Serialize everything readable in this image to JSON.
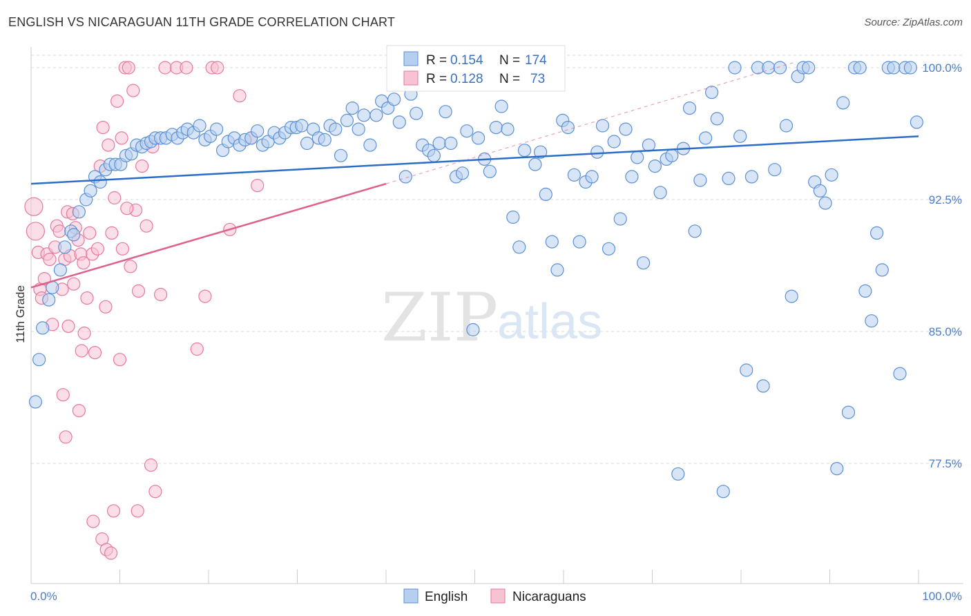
{
  "header": {
    "title": "ENGLISH VS NICARAGUAN 11TH GRADE CORRELATION CHART",
    "source": "Source: ZipAtlas.com"
  },
  "watermark": {
    "zip": "ZIP",
    "atlas": "atlas"
  },
  "colors": {
    "english": "#5b8fd6",
    "english_fill": "#b7cfee",
    "english_line": "#2a6cc7",
    "nicaraguan": "#e7789c",
    "nicaraguan_fill": "#f7c3d3",
    "nicaraguan_line": "#e0608c",
    "grid": "#d8d8d8",
    "axis_text": "#4a7cc9"
  },
  "legend": {
    "r_label": "R =",
    "n_label": "N =",
    "rows": [
      {
        "series": "English",
        "r": "0.154",
        "n": "174"
      },
      {
        "series": "Nicaraguans",
        "r": "0.128",
        "n": "73"
      }
    ]
  },
  "chart_data": {
    "type": "scatter",
    "title": "ENGLISH VS NICARAGUAN 11TH GRADE CORRELATION CHART",
    "xlabel": "",
    "ylabel": "11th Grade",
    "xlim": [
      0,
      100
    ],
    "ylim": [
      71.0,
      100.8
    ],
    "x_tick_labels": [
      "0.0%",
      "100.0%"
    ],
    "y_ticks": [
      77.5,
      85.0,
      92.5,
      100.0
    ],
    "y_tick_labels": [
      "77.5%",
      "85.0%",
      "92.5%",
      "100.0%"
    ],
    "grid": "horizontal dashed",
    "legend_position": "top-center",
    "series": [
      {
        "name": "English",
        "r": 0.154,
        "n": 174,
        "trend": {
          "x": [
            0,
            100
          ],
          "y": [
            93.4,
            96.1
          ]
        },
        "points": [
          [
            0.5,
            81.0
          ],
          [
            0.9,
            83.4
          ],
          [
            1.3,
            85.2
          ],
          [
            2.0,
            86.8
          ],
          [
            2.4,
            87.5
          ],
          [
            3.3,
            88.5
          ],
          [
            3.8,
            89.8
          ],
          [
            4.5,
            90.7
          ],
          [
            4.8,
            90.5
          ],
          [
            5.4,
            91.8
          ],
          [
            6.2,
            92.5
          ],
          [
            6.7,
            93.0
          ],
          [
            7.2,
            93.8
          ],
          [
            7.8,
            93.5
          ],
          [
            8.4,
            94.2
          ],
          [
            8.9,
            94.5
          ],
          [
            9.5,
            94.5
          ],
          [
            10.1,
            94.5
          ],
          [
            10.7,
            95.0
          ],
          [
            11.3,
            95.1
          ],
          [
            11.9,
            95.6
          ],
          [
            12.5,
            95.5
          ],
          [
            13.0,
            95.7
          ],
          [
            13.5,
            95.8
          ],
          [
            14.0,
            96.0
          ],
          [
            14.6,
            96.0
          ],
          [
            15.2,
            96.0
          ],
          [
            15.9,
            96.2
          ],
          [
            16.5,
            96.0
          ],
          [
            17.1,
            96.3
          ],
          [
            17.6,
            96.5
          ],
          [
            18.3,
            96.3
          ],
          [
            19.0,
            96.7
          ],
          [
            19.6,
            95.9
          ],
          [
            20.2,
            96.1
          ],
          [
            20.9,
            96.5
          ],
          [
            21.6,
            95.3
          ],
          [
            22.2,
            95.8
          ],
          [
            22.9,
            96.0
          ],
          [
            23.5,
            95.6
          ],
          [
            24.1,
            95.9
          ],
          [
            24.8,
            96.0
          ],
          [
            25.5,
            96.4
          ],
          [
            26.1,
            95.6
          ],
          [
            26.7,
            95.8
          ],
          [
            27.4,
            96.3
          ],
          [
            28.0,
            96.0
          ],
          [
            28.6,
            96.3
          ],
          [
            29.3,
            96.6
          ],
          [
            29.9,
            96.6
          ],
          [
            30.5,
            96.7
          ],
          [
            31.1,
            95.7
          ],
          [
            31.8,
            96.5
          ],
          [
            32.4,
            96.0
          ],
          [
            33.1,
            95.9
          ],
          [
            33.7,
            96.7
          ],
          [
            34.3,
            96.5
          ],
          [
            34.9,
            95.0
          ],
          [
            35.6,
            97.0
          ],
          [
            36.2,
            97.7
          ],
          [
            36.9,
            96.5
          ],
          [
            37.5,
            97.3
          ],
          [
            38.2,
            95.6
          ],
          [
            38.9,
            97.3
          ],
          [
            39.5,
            98.1
          ],
          [
            40.2,
            97.7
          ],
          [
            40.9,
            98.2
          ],
          [
            41.5,
            96.9
          ],
          [
            42.2,
            93.8
          ],
          [
            42.8,
            98.5
          ],
          [
            43.4,
            97.4
          ],
          [
            44.1,
            95.6
          ],
          [
            44.8,
            95.3
          ],
          [
            45.4,
            95.0
          ],
          [
            46.0,
            95.7
          ],
          [
            46.7,
            97.5
          ],
          [
            47.3,
            95.7
          ],
          [
            47.9,
            93.8
          ],
          [
            48.6,
            94.0
          ],
          [
            49.1,
            96.4
          ],
          [
            49.8,
            85.1
          ],
          [
            50.4,
            96.0
          ],
          [
            51.1,
            94.8
          ],
          [
            51.7,
            94.1
          ],
          [
            52.4,
            96.6
          ],
          [
            53.0,
            97.8
          ],
          [
            53.7,
            96.5
          ],
          [
            54.3,
            91.5
          ],
          [
            55.0,
            89.8
          ],
          [
            55.6,
            95.3
          ],
          [
            56.1,
            100.0
          ],
          [
            56.8,
            94.5
          ],
          [
            57.4,
            95.2
          ],
          [
            58.0,
            92.8
          ],
          [
            58.7,
            90.1
          ],
          [
            59.3,
            88.5
          ],
          [
            59.9,
            97.0
          ],
          [
            60.5,
            96.6
          ],
          [
            61.2,
            93.9
          ],
          [
            61.8,
            90.1
          ],
          [
            62.5,
            93.5
          ],
          [
            63.2,
            93.8
          ],
          [
            63.8,
            95.2
          ],
          [
            64.4,
            96.7
          ],
          [
            65.1,
            89.7
          ],
          [
            65.7,
            95.8
          ],
          [
            66.4,
            91.4
          ],
          [
            67.0,
            96.5
          ],
          [
            67.7,
            93.8
          ],
          [
            68.3,
            94.9
          ],
          [
            69.0,
            88.9
          ],
          [
            69.6,
            95.6
          ],
          [
            70.3,
            94.4
          ],
          [
            70.9,
            92.9
          ],
          [
            71.6,
            94.8
          ],
          [
            72.2,
            95.0
          ],
          [
            72.9,
            76.9
          ],
          [
            73.5,
            95.4
          ],
          [
            74.2,
            97.7
          ],
          [
            74.8,
            90.7
          ],
          [
            75.4,
            93.6
          ],
          [
            76.0,
            96.0
          ],
          [
            76.7,
            98.6
          ],
          [
            77.3,
            97.1
          ],
          [
            78.0,
            75.9
          ],
          [
            78.6,
            93.7
          ],
          [
            79.3,
            100.0
          ],
          [
            79.9,
            96.1
          ],
          [
            80.6,
            82.8
          ],
          [
            81.2,
            93.8
          ],
          [
            81.9,
            100.0
          ],
          [
            82.5,
            81.9
          ],
          [
            83.1,
            100.0
          ],
          [
            83.8,
            94.2
          ],
          [
            84.4,
            100.0
          ],
          [
            85.1,
            96.7
          ],
          [
            85.7,
            87.0
          ],
          [
            86.4,
            99.5
          ],
          [
            87.0,
            100.0
          ],
          [
            87.6,
            100.0
          ],
          [
            88.3,
            93.5
          ],
          [
            88.9,
            93.0
          ],
          [
            89.5,
            92.3
          ],
          [
            90.2,
            93.9
          ],
          [
            90.8,
            77.2
          ],
          [
            91.5,
            98.0
          ],
          [
            92.1,
            80.4
          ],
          [
            92.8,
            100.0
          ],
          [
            93.4,
            100.0
          ],
          [
            94.0,
            87.3
          ],
          [
            94.7,
            85.6
          ],
          [
            95.3,
            90.6
          ],
          [
            95.9,
            88.5
          ],
          [
            96.6,
            100.0
          ],
          [
            97.2,
            100.0
          ],
          [
            97.9,
            82.6
          ],
          [
            98.5,
            100.0
          ],
          [
            99.1,
            100.0
          ],
          [
            99.8,
            96.9
          ]
        ]
      },
      {
        "name": "Nicaraguans",
        "r": 0.128,
        "n": 73,
        "trend": {
          "x": [
            0,
            40
          ],
          "y": [
            87.5,
            93.4
          ]
        },
        "trend_extension": {
          "x": [
            40,
            86
          ],
          "y": [
            93.4,
            100.3
          ]
        },
        "points": [
          [
            0.3,
            92.1
          ],
          [
            0.5,
            90.7
          ],
          [
            0.8,
            89.5
          ],
          [
            1.0,
            87.4
          ],
          [
            1.2,
            86.9
          ],
          [
            1.5,
            88.0
          ],
          [
            1.8,
            89.4
          ],
          [
            2.1,
            89.1
          ],
          [
            2.4,
            85.4
          ],
          [
            2.7,
            89.8
          ],
          [
            2.9,
            91.0
          ],
          [
            3.2,
            90.7
          ],
          [
            3.5,
            87.4
          ],
          [
            3.8,
            89.1
          ],
          [
            4.1,
            91.8
          ],
          [
            4.4,
            89.3
          ],
          [
            4.7,
            91.7
          ],
          [
            5.0,
            90.9
          ],
          [
            5.3,
            90.2
          ],
          [
            5.6,
            89.4
          ],
          [
            5.9,
            88.9
          ],
          [
            6.3,
            86.9
          ],
          [
            6.6,
            90.6
          ],
          [
            6.9,
            89.4
          ],
          [
            7.2,
            83.8
          ],
          [
            7.5,
            89.7
          ],
          [
            7.8,
            94.4
          ],
          [
            8.1,
            96.6
          ],
          [
            8.4,
            86.4
          ],
          [
            8.7,
            95.6
          ],
          [
            9.1,
            90.6
          ],
          [
            9.4,
            92.6
          ],
          [
            9.7,
            98.1
          ],
          [
            10.0,
            83.4
          ],
          [
            10.3,
            89.7
          ],
          [
            10.6,
            100.0
          ],
          [
            11.0,
            100.0
          ],
          [
            11.5,
            98.7
          ],
          [
            11.8,
            91.9
          ],
          [
            12.1,
            87.3
          ],
          [
            12.5,
            94.4
          ],
          [
            13.0,
            91.0
          ],
          [
            13.5,
            77.4
          ],
          [
            14.0,
            75.9
          ],
          [
            14.6,
            87.1
          ],
          [
            15.1,
            100.0
          ],
          [
            16.4,
            100.0
          ],
          [
            17.5,
            100.0
          ],
          [
            18.7,
            84.0
          ],
          [
            19.6,
            87.0
          ],
          [
            20.4,
            100.0
          ],
          [
            21.0,
            100.0
          ],
          [
            22.4,
            90.8
          ],
          [
            23.5,
            98.4
          ],
          [
            24.8,
            96.0
          ],
          [
            25.5,
            93.3
          ],
          [
            6.0,
            84.9
          ],
          [
            5.7,
            83.9
          ],
          [
            4.8,
            87.7
          ],
          [
            4.2,
            85.3
          ],
          [
            3.6,
            81.4
          ],
          [
            3.9,
            79.0
          ],
          [
            5.4,
            80.5
          ],
          [
            7.0,
            74.2
          ],
          [
            8.0,
            73.2
          ],
          [
            8.5,
            72.6
          ],
          [
            9.0,
            72.4
          ],
          [
            9.3,
            74.8
          ],
          [
            12.0,
            74.8
          ],
          [
            11.2,
            88.7
          ],
          [
            10.8,
            92.0
          ],
          [
            10.2,
            96.0
          ],
          [
            13.7,
            95.5
          ]
        ]
      }
    ]
  },
  "axis_y_label": "11th Grade"
}
